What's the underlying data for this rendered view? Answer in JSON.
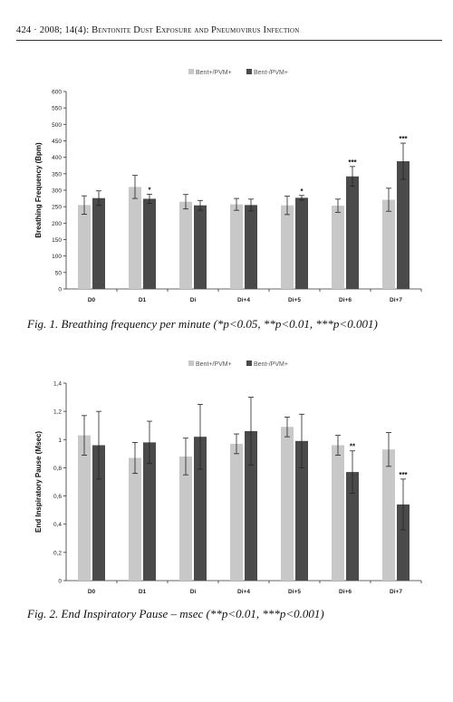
{
  "header": {
    "page": "424",
    "citation": "2008; 14(4):",
    "title": "Bentonite Dust Exposure and Pneumovirus Infection"
  },
  "figures": [
    {
      "caption": "Fig. 1. Breathing frequency per minute (*p<0.05, **p<0.01, ***p<0.001)"
    },
    {
      "caption": "Fig. 2. End Inspiratory Pause – msec (**p<0.01, ***p<0.001)"
    }
  ],
  "colors": {
    "series1": "#c8c8c8",
    "series2": "#4a4a4a"
  },
  "chart_data": [
    {
      "type": "bar",
      "title": "",
      "xlabel": "",
      "ylabel": "Breathing Frequency (Bpm)",
      "ylim": [
        0,
        600
      ],
      "yticks": [
        "0",
        "50",
        "100",
        "150",
        "200",
        "250",
        "300",
        "350",
        "400",
        "450",
        "500",
        "550",
        "600"
      ],
      "ytick_values": [
        0,
        50,
        100,
        150,
        200,
        250,
        300,
        350,
        400,
        450,
        500,
        550,
        600
      ],
      "categories": [
        "D0",
        "D1",
        "Di",
        "Di+4",
        "Di+5",
        "Di+6",
        "Di+7"
      ],
      "series": [
        {
          "name": "Bent+/PVM+",
          "values": [
            255,
            310,
            265,
            257,
            254,
            253,
            271
          ],
          "errors": [
            28,
            35,
            22,
            18,
            28,
            20,
            35
          ]
        },
        {
          "name": "Bent-/PVM+",
          "values": [
            276,
            274,
            254,
            255,
            277,
            342,
            388
          ],
          "errors": [
            22,
            14,
            15,
            18,
            7,
            30,
            55
          ]
        }
      ],
      "significance": [
        "",
        "*",
        "",
        "",
        "*",
        "***",
        "***"
      ],
      "legend": "top-center",
      "grid": false
    },
    {
      "type": "bar",
      "title": "",
      "xlabel": "",
      "ylabel": "End Inspiratory Pause (Msec)",
      "ylim": [
        0,
        1.4
      ],
      "yticks": [
        "0",
        "0,2",
        "0,4",
        "0,6",
        "0,8",
        "1",
        "1,2",
        "1,4"
      ],
      "ytick_values": [
        0,
        0.2,
        0.4,
        0.6,
        0.8,
        1.0,
        1.2,
        1.4
      ],
      "categories": [
        "D0",
        "D1",
        "Di",
        "Di+4",
        "Di+5",
        "Di+6",
        "Di+7"
      ],
      "series": [
        {
          "name": "Bent+/PVM+",
          "values": [
            1.03,
            0.87,
            0.88,
            0.97,
            1.09,
            0.96,
            0.93
          ],
          "errors": [
            0.14,
            0.11,
            0.13,
            0.07,
            0.07,
            0.07,
            0.12
          ]
        },
        {
          "name": "Bent-/PVM+",
          "values": [
            0.96,
            0.98,
            1.02,
            1.06,
            0.99,
            0.77,
            0.54
          ],
          "errors": [
            0.24,
            0.15,
            0.23,
            0.24,
            0.19,
            0.15,
            0.18
          ]
        }
      ],
      "significance": [
        "",
        "",
        "",
        "",
        "",
        "**",
        "***"
      ],
      "legend": "top-center",
      "grid": false
    }
  ]
}
